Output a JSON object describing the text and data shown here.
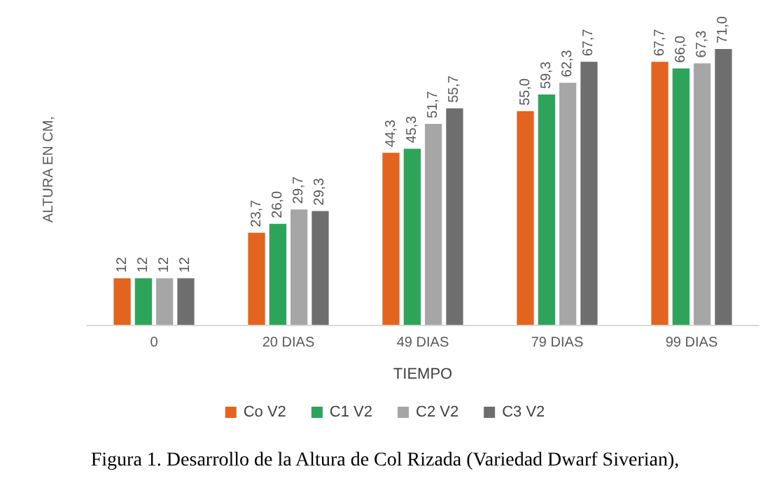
{
  "chart_data": {
    "type": "bar",
    "title": "Figura 1. Desarrollo de la Altura de Col Rizada (Variedad Dwarf Siverian),",
    "xlabel": "TIEMPO",
    "ylabel": "ALTURA EN CM,",
    "categories": [
      "0",
      "20 DIAS",
      "49 DIAS",
      "79 DIAS",
      "99 DIAS"
    ],
    "series": [
      {
        "name": "Co V2",
        "color": "#e2641e",
        "values": [
          12,
          23.7,
          44.3,
          55.0,
          67.7
        ],
        "value_labels": [
          "12",
          "23,7",
          "44,3",
          "55,0",
          "67,7"
        ]
      },
      {
        "name": "C1 V2",
        "color": "#2ea35a",
        "values": [
          12,
          26.0,
          45.3,
          59.3,
          66.0
        ],
        "value_labels": [
          "12",
          "26,0",
          "45,3",
          "59,3",
          "66,0"
        ]
      },
      {
        "name": "C2 V2",
        "color": "#a6a6a6",
        "values": [
          12,
          29.7,
          51.7,
          62.3,
          67.3
        ],
        "value_labels": [
          "12",
          "29,7",
          "51,7",
          "62,3",
          "67,3"
        ]
      },
      {
        "name": "C3 V2",
        "color": "#6e6e6e",
        "values": [
          12,
          29.3,
          55.7,
          67.7,
          71.0
        ],
        "value_labels": [
          "12",
          "29,3",
          "55,7",
          "67,7",
          "71,0"
        ]
      }
    ],
    "legend": "bottom",
    "tick_labels": "x"
  }
}
